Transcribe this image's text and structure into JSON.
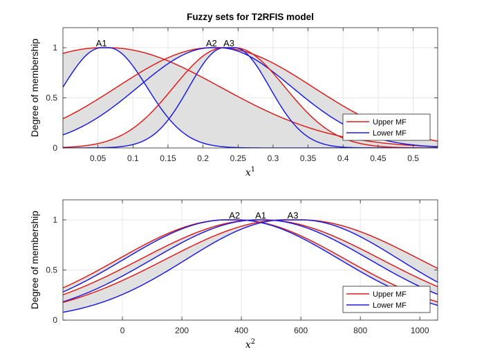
{
  "chart_data": [
    {
      "type": "line",
      "title": "Fuzzy sets for T2RFIS model",
      "xlabel": "x",
      "xlabel_superscript": "1",
      "ylabel": "Degree of membership",
      "xlim": [
        0.0,
        0.535
      ],
      "ylim": [
        0,
        1.2
      ],
      "xticks": [
        "0.05",
        "0.1",
        "0.15",
        "0.2",
        "0.25",
        "0.3",
        "0.35",
        "0.4",
        "0.45",
        "0.5"
      ],
      "xtick_values": [
        0.05,
        0.1,
        0.15,
        0.2,
        0.25,
        0.3,
        0.35,
        0.4,
        0.45,
        0.5
      ],
      "yticks": [
        "0",
        "0.5",
        "1"
      ],
      "ytick_values": [
        0,
        0.5,
        1
      ],
      "grid": true,
      "legend_position": "bottom-right",
      "legend": [
        {
          "label": "Upper MF",
          "color": "#dd1c1c"
        },
        {
          "label": "Lower MF",
          "color": "#1c1cdd"
        }
      ],
      "band_color": "#dedede",
      "sets": [
        {
          "name": "A1",
          "label_x": 0.055,
          "upper": {
            "peak_left": 0.055,
            "peak_right": 0.065,
            "sigma": 0.16
          },
          "lower": {
            "peak_left": 0.055,
            "peak_right": 0.065,
            "sigma": 0.055
          }
        },
        {
          "name": "A2",
          "label_x": 0.212,
          "upper": {
            "peak_left": 0.212,
            "peak_right": 0.222,
            "sigma": 0.135
          },
          "lower": {
            "peak_left": 0.212,
            "peak_right": 0.222,
            "sigma": 0.105
          }
        },
        {
          "name": "A3",
          "label_x": 0.237,
          "upper": {
            "peak_left": 0.23,
            "peak_right": 0.245,
            "sigma": 0.072
          },
          "lower": {
            "peak_left": 0.23,
            "peak_right": 0.245,
            "sigma": 0.05
          }
        }
      ]
    },
    {
      "type": "line",
      "title": "",
      "xlabel": "x",
      "xlabel_superscript": "2",
      "ylabel": "Degree of membership",
      "xlim": [
        -200,
        1060
      ],
      "ylim": [
        0,
        1.2
      ],
      "xticks": [
        "0",
        "200",
        "400",
        "600",
        "800",
        "1000"
      ],
      "xtick_values": [
        0,
        200,
        400,
        600,
        800,
        1000
      ],
      "yticks": [
        "0",
        "0.5",
        "1"
      ],
      "ytick_values": [
        0,
        0.5,
        1
      ],
      "grid": true,
      "legend_position": "bottom-right",
      "legend": [
        {
          "label": "Upper MF",
          "color": "#dd1c1c"
        },
        {
          "label": "Lower MF",
          "color": "#1c1cdd"
        }
      ],
      "band_color": "#dedede",
      "sets": [
        {
          "name": "A2",
          "label_x": 377,
          "upper": {
            "peak_left": 350,
            "peak_right": 385,
            "sigma": 365
          },
          "lower": {
            "peak_left": 350,
            "peak_right": 385,
            "sigma": 345
          }
        },
        {
          "name": "A1",
          "label_x": 465,
          "upper": {
            "peak_left": 455,
            "peak_right": 475,
            "sigma": 395
          },
          "lower": {
            "peak_left": 455,
            "peak_right": 475,
            "sigma": 355
          }
        },
        {
          "name": "A3",
          "label_x": 573,
          "upper": {
            "peak_left": 545,
            "peak_right": 600,
            "sigma": 400
          },
          "lower": {
            "peak_left": 545,
            "peak_right": 600,
            "sigma": 330
          }
        }
      ]
    }
  ]
}
